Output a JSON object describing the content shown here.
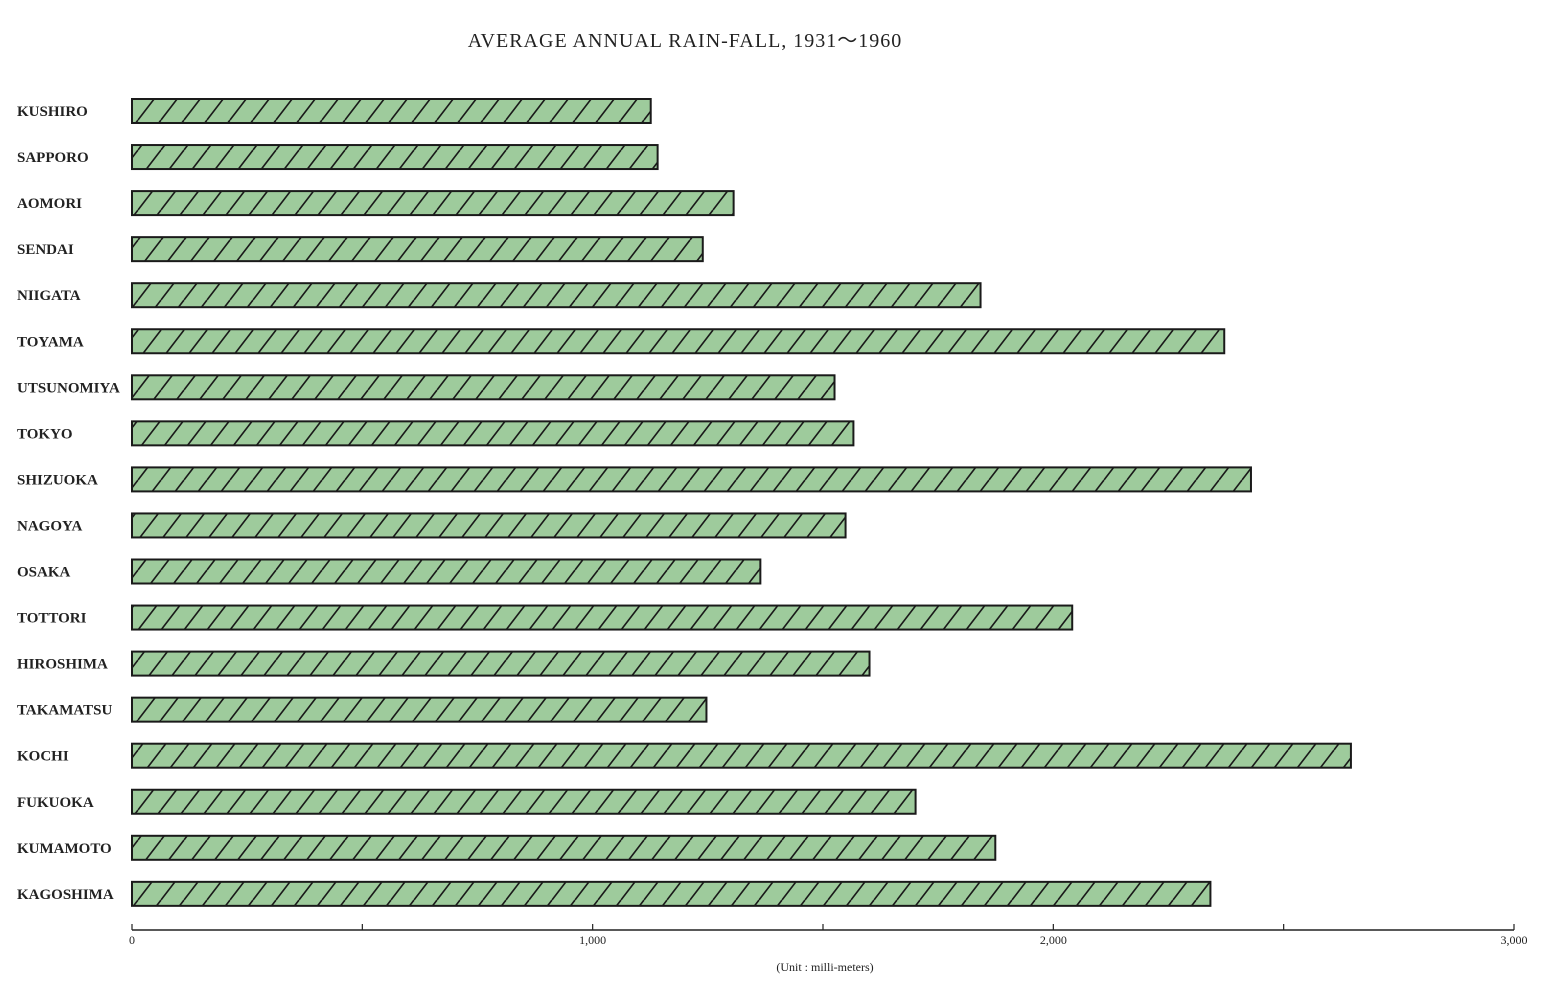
{
  "chart_data": {
    "type": "bar",
    "orientation": "horizontal",
    "title": "AVERAGE ANNUAL RAIN-FALL,  1931～1960",
    "xlabel": "(Unit : milli-meters)",
    "ylabel": "",
    "xlim": [
      0,
      3000
    ],
    "xticks": [
      0,
      500,
      1000,
      1500,
      2000,
      2500,
      3000
    ],
    "xtick_labels": [
      "0",
      "",
      "1,000",
      "",
      "2,000",
      "",
      "3,000"
    ],
    "grid": false,
    "categories": [
      "KUSHIRO",
      "SAPPORO",
      "AOMORI",
      "SENDAI",
      "NIIGATA",
      "TOYAMA",
      "UTSUNOMIYA",
      "TOKYO",
      "SHIZUOKA",
      "NAGOYA",
      "OSAKA",
      "TOTTORI",
      "HIROSHIMA",
      "TAKAMATSU",
      "KOCHI",
      "FUKUOKA",
      "KUMAMOTO",
      "KAGOSHIMA"
    ],
    "values": [
      1126,
      1141,
      1306,
      1239,
      1842,
      2371,
      1525,
      1566,
      2429,
      1549,
      1364,
      2041,
      1601,
      1247,
      2646,
      1701,
      1874,
      2341
    ],
    "bar_color": "#9ecb9c",
    "edge_color": "#1a1a1a"
  }
}
